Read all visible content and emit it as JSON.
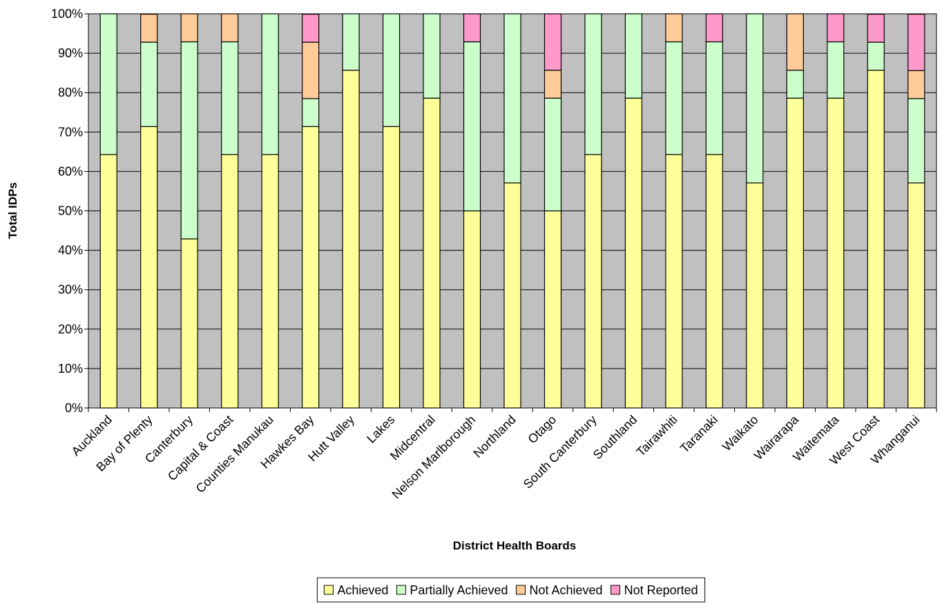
{
  "chart_data": {
    "type": "bar",
    "stacked": "percent",
    "title": "",
    "xlabel": "District Health Boards",
    "ylabel": "Total IDPs",
    "ylim": [
      0,
      100
    ],
    "yticks": [
      "0%",
      "10%",
      "20%",
      "30%",
      "40%",
      "50%",
      "60%",
      "70%",
      "80%",
      "90%",
      "100%"
    ],
    "grid": "horizontal",
    "legend_position": "bottom",
    "categories": [
      "Auckland",
      "Bay of Plenty",
      "Canterbury",
      "Capital & Coast",
      "Counties Manukau",
      "Hawkes Bay",
      "Hutt Valley",
      "Lakes",
      "Midcentral",
      "Nelson Marlborough",
      "Northland",
      "Otago",
      "South Canterbury",
      "Southland",
      "Tairawhiti",
      "Taranaki",
      "Waikato",
      "Wairarapa",
      "Waitemata",
      "West Coast",
      "Whanganui"
    ],
    "series": [
      {
        "name": "Achieved",
        "color": "#FFFF99",
        "values": [
          64.3,
          71.4,
          42.9,
          64.3,
          64.3,
          71.4,
          85.7,
          71.4,
          78.6,
          50.0,
          57.1,
          50.0,
          64.3,
          78.6,
          64.3,
          64.3,
          57.1,
          78.6,
          78.6,
          85.7,
          57.1
        ]
      },
      {
        "name": "Partially Achieved",
        "color": "#CCFFCC",
        "values": [
          35.7,
          21.4,
          50.0,
          28.6,
          35.7,
          7.1,
          14.3,
          28.6,
          21.4,
          42.9,
          42.9,
          28.6,
          35.7,
          21.4,
          28.6,
          28.6,
          42.9,
          7.1,
          14.3,
          7.1,
          21.4
        ]
      },
      {
        "name": "Not Achieved",
        "color": "#FFCC99",
        "values": [
          0,
          7.1,
          7.1,
          7.1,
          0,
          14.3,
          0,
          0,
          0,
          0,
          0,
          7.1,
          0,
          0,
          7.1,
          0,
          0,
          14.3,
          0,
          0,
          7.1
        ]
      },
      {
        "name": "Not Reported",
        "color": "#FF99CC",
        "values": [
          0,
          0,
          0,
          0,
          0,
          7.1,
          0,
          0,
          0,
          7.1,
          0,
          14.3,
          0,
          0,
          0,
          7.1,
          0,
          0,
          7.1,
          7.1,
          14.3
        ]
      }
    ],
    "plot_background": "#C0C0C0"
  }
}
